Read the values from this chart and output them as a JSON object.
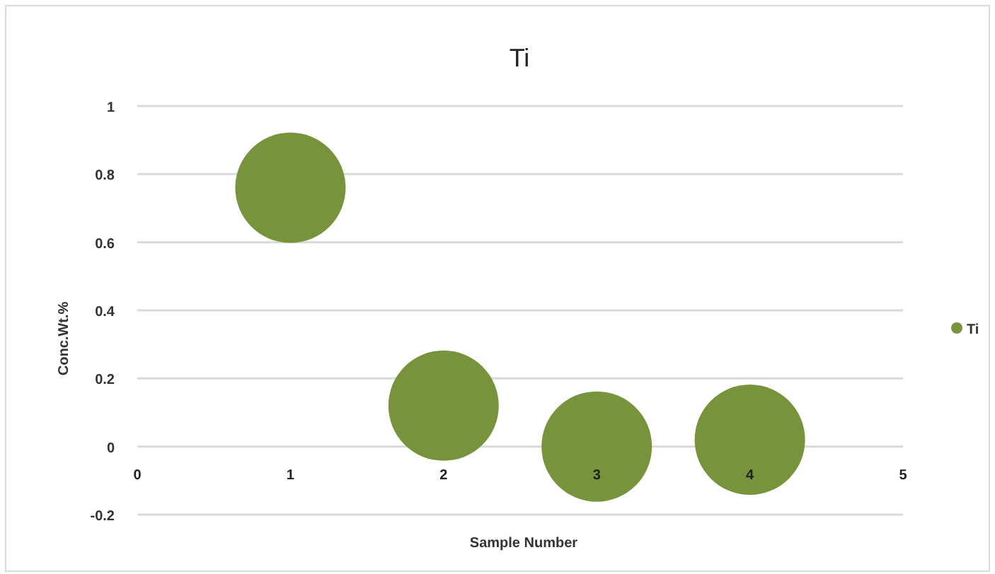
{
  "chart_data": {
    "type": "bubble",
    "title": "Ti",
    "xlabel": "Sample Number",
    "ylabel": "Conc.Wt.%",
    "x": [
      1,
      2,
      3,
      4
    ],
    "series": [
      {
        "name": "Ti",
        "color": "#77933c",
        "values": [
          0.76,
          0.12,
          0,
          0.02
        ],
        "sizes": [
          1,
          1,
          1,
          1
        ]
      }
    ],
    "xlim": [
      0,
      5
    ],
    "xticks": [
      0,
      1,
      2,
      3,
      4,
      5
    ],
    "ylim": [
      -0.2,
      1
    ],
    "yticks": [
      -0.2,
      0,
      0.2,
      0.4,
      0.6,
      0.8,
      1
    ],
    "grid": "y",
    "legend": "right"
  }
}
